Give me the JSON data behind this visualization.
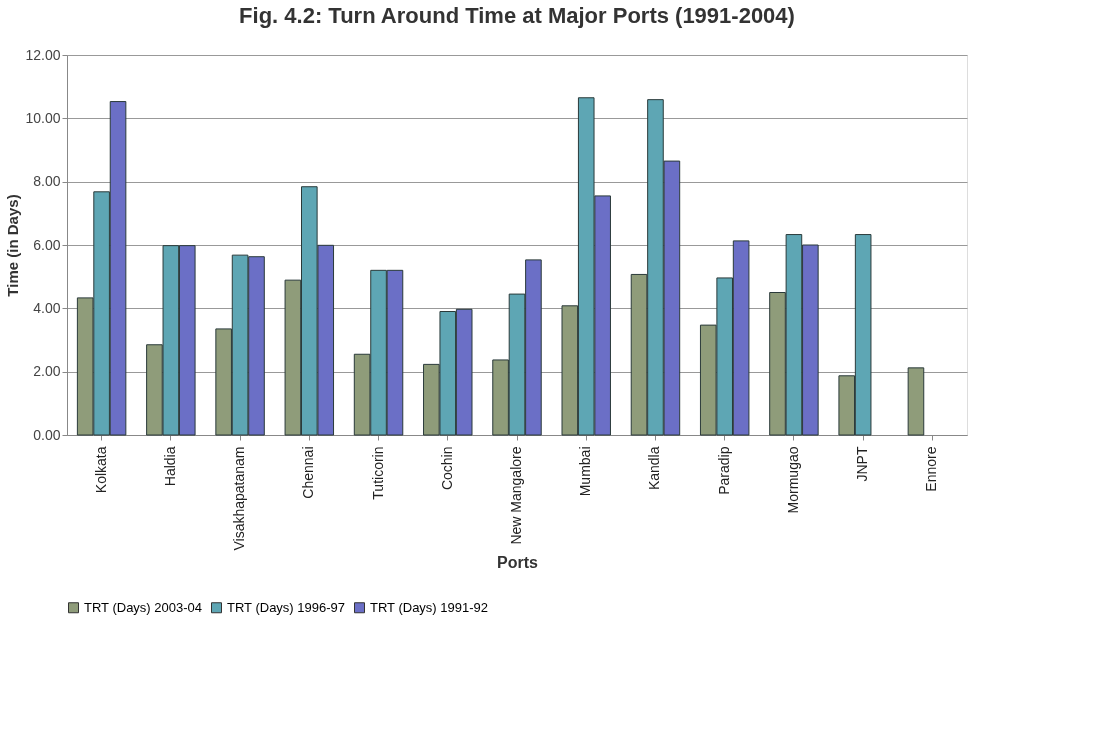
{
  "chart_data": {
    "type": "bar",
    "title": "Fig. 4.2: Turn Around Time at Major Ports (1991-2004)",
    "xlabel": "Ports",
    "ylabel": "Time (in Days)",
    "categories": [
      "Kolkata",
      "Haldia",
      "Visakhapatanam",
      "Chennai",
      "Tuticorin",
      "Cochin",
      "New Mangalore",
      "Mumbai",
      "Kandla",
      "Paradip",
      "Mormugao",
      "JNPT",
      "Ennore"
    ],
    "series": [
      {
        "name": "TRT (Days) 2003-04",
        "color": "#8f9c7a",
        "values": [
          4.33,
          2.85,
          3.35,
          4.89,
          2.55,
          2.23,
          2.37,
          4.08,
          5.07,
          3.47,
          4.5,
          1.87,
          2.12
        ]
      },
      {
        "name": "TRT (Days) 1996-97",
        "color": "#5ea6b4",
        "values": [
          7.68,
          5.98,
          5.68,
          7.84,
          5.2,
          3.9,
          4.45,
          10.65,
          10.59,
          4.96,
          6.33,
          6.33,
          null
        ]
      },
      {
        "name": "TRT (Days) 1991-92",
        "color": "#6b6fc6",
        "values": [
          10.53,
          5.98,
          5.63,
          5.99,
          5.2,
          3.97,
          5.53,
          7.55,
          8.65,
          6.13,
          6.0,
          null,
          null
        ]
      }
    ],
    "ylim": [
      0,
      12
    ],
    "yticks": [
      {
        "value": 0,
        "label": "0.00"
      },
      {
        "value": 2,
        "label": "2.00"
      },
      {
        "value": 4,
        "label": "4.00"
      },
      {
        "value": 6,
        "label": "6.00"
      },
      {
        "value": 8,
        "label": "8.00"
      },
      {
        "value": 10,
        "label": "10.00"
      },
      {
        "value": 12,
        "label": "12.00"
      }
    ],
    "grid": "y",
    "legend": "bottom"
  }
}
